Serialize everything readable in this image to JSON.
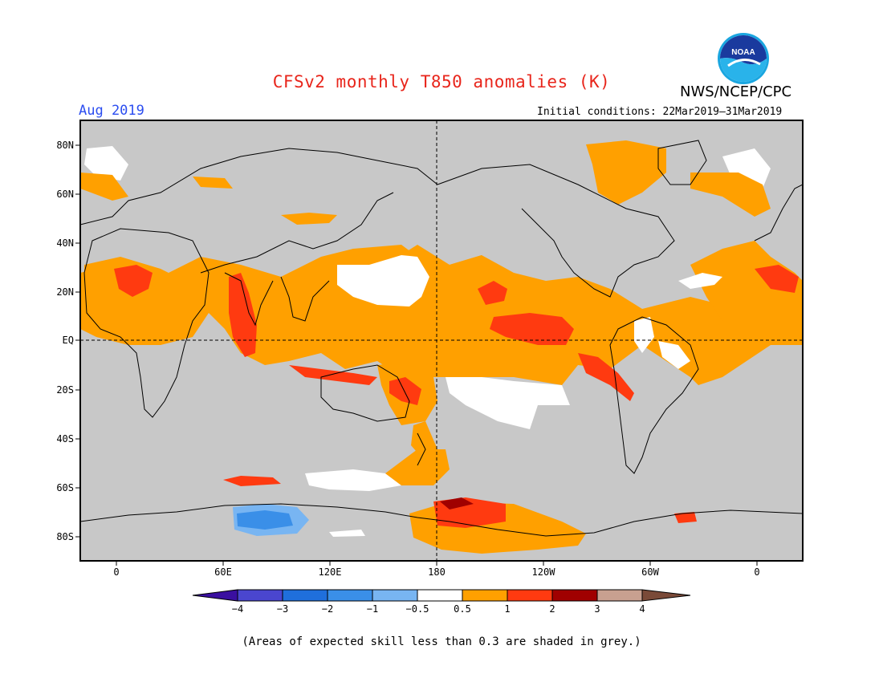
{
  "header": {
    "title": "CFSv2 monthly T850 anomalies (K)",
    "month": "Aug 2019",
    "initial_conditions": "Initial conditions: 22Mar2019–31Mar2019",
    "agency": "NWS/NCEP/CPC",
    "logo_text": "NOAA"
  },
  "map": {
    "lat_labels": [
      "80N",
      "60N",
      "40N",
      "20N",
      "EQ",
      "20S",
      "40S",
      "60S",
      "80S"
    ],
    "lon_labels": [
      "0",
      "60E",
      "120E",
      "180",
      "120W",
      "60W",
      "0"
    ],
    "background_color": "#c8c8c8"
  },
  "colorbar": {
    "ticks": [
      "−4",
      "−3",
      "−2",
      "−1",
      "−0.5",
      "0.5",
      "1",
      "2",
      "3",
      "4"
    ],
    "colors": [
      "#3a0fa0",
      "#4a46cf",
      "#1f6fdc",
      "#3a8fe8",
      "#78b5f2",
      "#ffffff",
      "#ffa000",
      "#ff3a10",
      "#a00000",
      "#c8a090",
      "#7a4a38"
    ]
  },
  "footnote": "(Areas of expected skill less than 0.3 are shaded in grey.)"
}
